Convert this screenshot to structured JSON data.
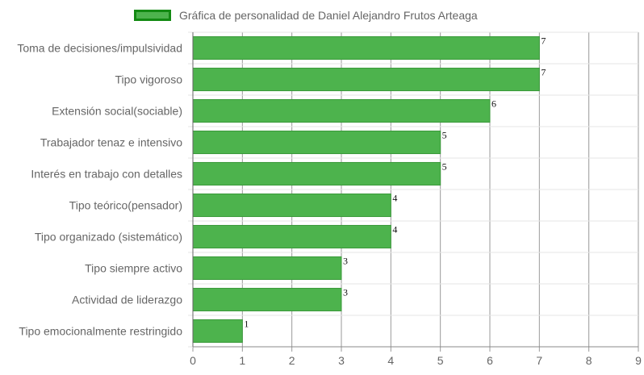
{
  "legend": {
    "label": "Gráfica de personalidad de Daniel Alejandro Frutos Arteaga",
    "swatch_fill": "#4db34d",
    "swatch_border": "#138a13"
  },
  "chart_data": {
    "type": "bar",
    "orientation": "horizontal",
    "categories": [
      "Toma de decisiones/impulsividad",
      "Tipo vigoroso",
      "Extensión social(sociable)",
      "Trabajador tenaz e intensivo",
      "Interés en trabajo con detalles",
      "Tipo teórico(pensador)",
      "Tipo organizado (sistemático)",
      "Tipo siempre activo",
      "Actividad de liderazgo",
      "Tipo emocionalmente restringido"
    ],
    "series": [
      {
        "name": "Gráfica de personalidad de Daniel Alejandro Frutos Arteaga",
        "values": [
          7,
          7,
          6,
          5,
          5,
          4,
          4,
          3,
          3,
          1
        ],
        "color": "#4db34d",
        "border_color": "#3a9a3a"
      }
    ],
    "xlim": [
      0,
      9
    ],
    "xticks": [
      0,
      1,
      2,
      3,
      4,
      5,
      6,
      7,
      8,
      9
    ],
    "grid": true,
    "legend_position": "top-center",
    "data_labels": true
  }
}
